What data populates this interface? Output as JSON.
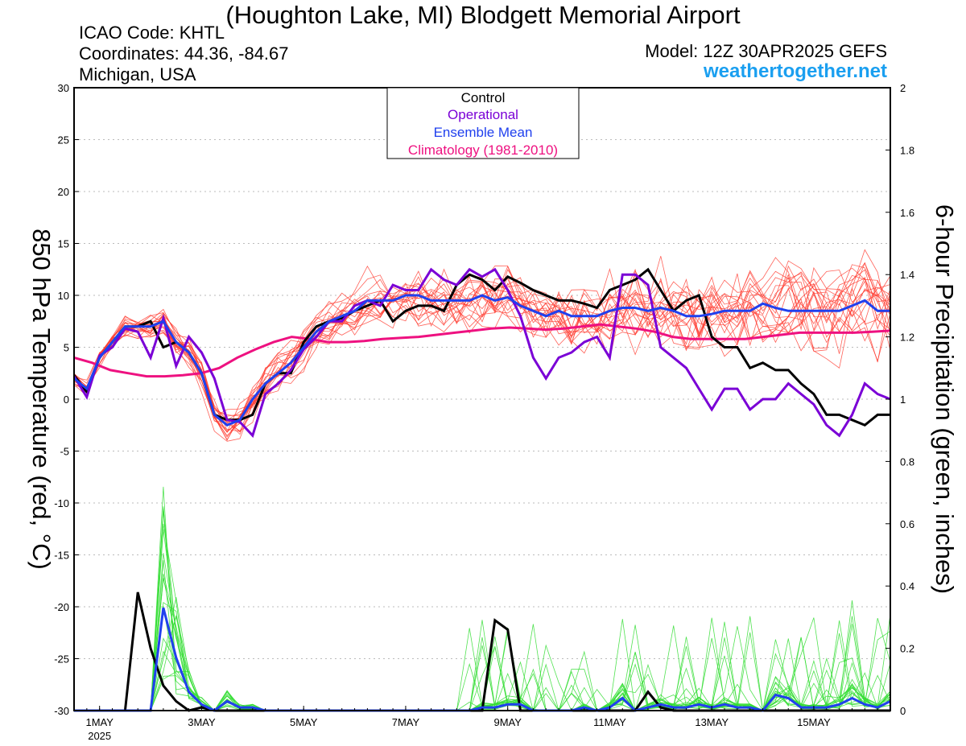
{
  "header": {
    "title": "(Houghton Lake, MI) Blodgett Memorial Airport",
    "icao": "ICAO Code: KHTL",
    "coordinates": "Coordinates: 44.36, -84.67",
    "region": "Michigan, USA",
    "model": "Model: 12Z 30APR2025 GEFS",
    "site": "weathertogether.net"
  },
  "colors": {
    "control": "#000000",
    "operational": "#7a00d6",
    "ensemble_mean": "#2040ee",
    "climatology": "#ee1180",
    "members_temp": "#ff3b30",
    "members_precip": "#33dd33",
    "site_link": "#1a9ff0"
  },
  "chart_data": {
    "type": "line",
    "title": "(Houghton Lake, MI) Blodgett Memorial Airport",
    "x_unit": "6-hour steps from 12Z 30APR2025",
    "x_ticks": [
      {
        "x": 2,
        "label": "1MAY",
        "sublabel": "2025"
      },
      {
        "x": 10,
        "label": "3MAY"
      },
      {
        "x": 18,
        "label": "5MAY"
      },
      {
        "x": 26,
        "label": "7MAY"
      },
      {
        "x": 34,
        "label": "9MAY"
      },
      {
        "x": 42,
        "label": "11MAY"
      },
      {
        "x": 50,
        "label": "13MAY"
      },
      {
        "x": 58,
        "label": "15MAY"
      }
    ],
    "xlim": [
      0,
      64
    ],
    "y_left": {
      "label": "850 hPa Temperature (red, °C)",
      "range": [
        -30,
        30
      ],
      "ticks": [
        30,
        25,
        20,
        15,
        10,
        5,
        0,
        -5,
        -10,
        -15,
        -20,
        -25,
        -30
      ]
    },
    "y_right": {
      "label": "6-hour Precipitation (green, inches)",
      "range": [
        0,
        2
      ],
      "ticks": [
        "2",
        "1.8",
        "1.6",
        "1.4",
        "1.2",
        "1",
        "0.8",
        "0.6",
        "0.4",
        "0.2",
        "0"
      ]
    },
    "grid": true,
    "legend": {
      "position": "top-center",
      "entries": [
        "Control",
        "Operational",
        "Ensemble Mean",
        "Climatology (1981-2010)"
      ]
    },
    "temperature": {
      "control": [
        2.3,
        0.7,
        4,
        5.5,
        7,
        7,
        7.5,
        5,
        5.5,
        4.5,
        2.5,
        -1.5,
        -2,
        -2,
        -1.5,
        1.5,
        2.5,
        2.5,
        5.5,
        7,
        7.5,
        7.8,
        8.5,
        9,
        9.5,
        7.5,
        8.5,
        9,
        9,
        8.5,
        11,
        12,
        11.5,
        10.5,
        11.8,
        11.2,
        10.5,
        10,
        9.5,
        9.5,
        9.2,
        8.8,
        10.5,
        11,
        11.5,
        12.5,
        10.5,
        8.5,
        9.5,
        10,
        6,
        5,
        5,
        3,
        3.5,
        2.8,
        2.8,
        1.5,
        0.5,
        -1.5,
        -1.5,
        -2,
        -2.5,
        -1.5,
        -1.5
      ],
      "operational": [
        2.2,
        0.2,
        4.2,
        5,
        6.8,
        6.5,
        4,
        7.8,
        3.2,
        6,
        4.5,
        2,
        -2,
        -2.2,
        -3.5,
        0.5,
        1.5,
        2.8,
        4.8,
        6,
        7.5,
        7.5,
        9,
        9.5,
        9,
        11,
        10.5,
        10.5,
        12.5,
        11.5,
        11,
        12.5,
        11.8,
        12.5,
        10.5,
        8,
        4,
        2,
        4,
        4.5,
        5.5,
        6,
        4,
        12,
        12,
        11,
        5,
        4,
        3,
        1,
        -1,
        1,
        1,
        -1,
        0,
        0,
        1.5,
        0.5,
        -0.5,
        -2.5,
        -3.5,
        -1.5,
        1.5,
        0.5,
        0
      ],
      "ensemble_mean": [
        2,
        1,
        4,
        5.5,
        7,
        7,
        7,
        7.5,
        5.5,
        4.5,
        2.5,
        -1.5,
        -2.5,
        -2,
        0,
        1.5,
        2.5,
        3.5,
        5,
        6.5,
        7.5,
        8,
        8.5,
        9.5,
        9.5,
        9.5,
        10,
        10,
        9.5,
        9.5,
        9.5,
        9.5,
        10,
        9.5,
        9.8,
        9,
        8.5,
        8,
        8.5,
        8,
        8,
        8,
        8.5,
        8.8,
        8.8,
        8.5,
        8.8,
        8.5,
        8,
        8,
        8.2,
        8.5,
        8.5,
        8.5,
        9.2,
        8.8,
        8.5,
        8.5,
        8.5,
        8.5,
        8.5,
        9,
        9.5,
        8.5,
        8.5
      ],
      "climatology": [
        4,
        3.5,
        2.8,
        2.5,
        2.2,
        2.2,
        2.3,
        2.5,
        3,
        4,
        4.8,
        5.5,
        6,
        5.8,
        5.5,
        5.5,
        5.6,
        5.8,
        5.9,
        6,
        6.2,
        6.4,
        6.6,
        6.8,
        6.9,
        6.8,
        6.7,
        6.8,
        7,
        7.2,
        7,
        6.8,
        6.5,
        6,
        5.8,
        5.8,
        5.8,
        5.8,
        6,
        6.2,
        6.4,
        6.4,
        6.4,
        6.4,
        6.5,
        6.6
      ]
    },
    "precipitation": {
      "control": [
        0,
        0,
        0,
        0,
        0,
        0.38,
        0.2,
        0.08,
        0.03,
        0,
        0.01,
        0,
        0,
        0,
        0,
        0,
        0,
        0,
        0,
        0,
        0,
        0,
        0,
        0,
        0,
        0,
        0,
        0,
        0,
        0,
        0,
        0,
        0,
        0.29,
        0.26,
        0,
        0,
        0,
        0,
        0,
        0,
        0,
        0,
        0,
        0,
        0.06,
        0.01,
        0,
        0,
        0,
        0,
        0,
        0,
        0,
        0,
        0,
        0,
        0,
        0,
        0,
        0,
        0,
        0,
        0,
        0
      ],
      "ensemble_mean": [
        0,
        0,
        0,
        0,
        0,
        0,
        0,
        0.33,
        0.17,
        0.06,
        0.02,
        0,
        0.03,
        0.01,
        0.01,
        0,
        0,
        0,
        0,
        0,
        0,
        0,
        0,
        0,
        0,
        0,
        0,
        0,
        0,
        0,
        0,
        0,
        0.01,
        0.01,
        0.02,
        0.02,
        0,
        0,
        0,
        0,
        0.01,
        0,
        0.01,
        0.04,
        0,
        0.01,
        0.02,
        0.01,
        0.01,
        0.02,
        0.01,
        0.02,
        0.01,
        0.01,
        0,
        0.05,
        0.04,
        0.01,
        0.01,
        0.01,
        0.02,
        0.04,
        0.02,
        0.01,
        0.03
      ]
    }
  }
}
